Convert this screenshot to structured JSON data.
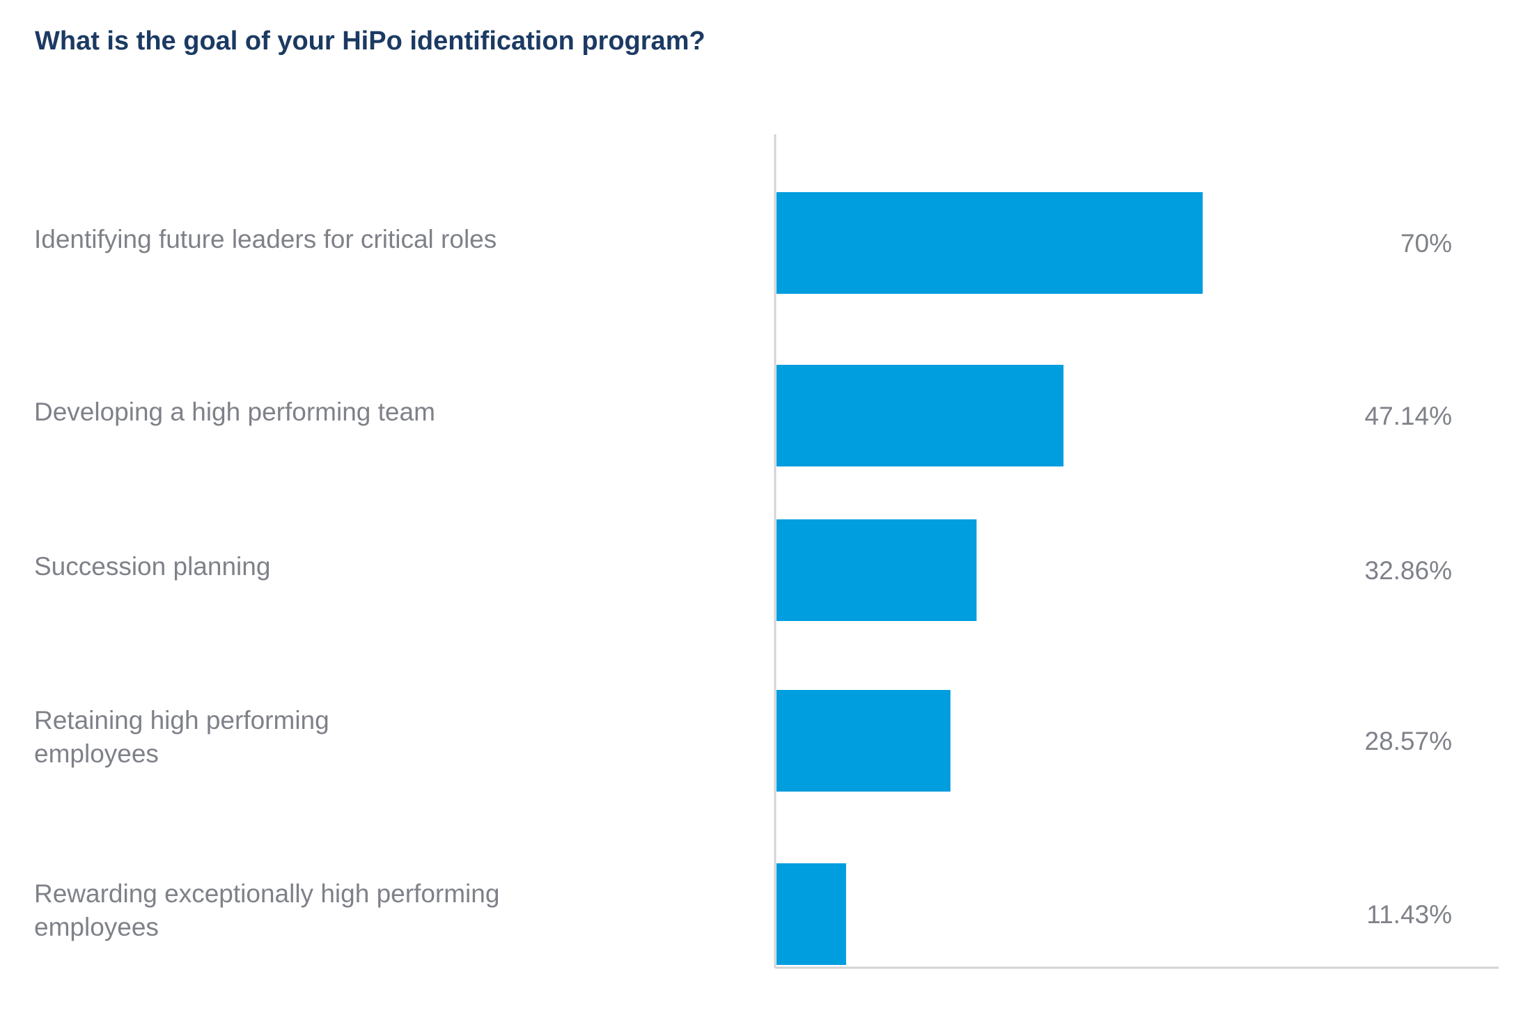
{
  "chart_data": {
    "type": "bar",
    "orientation": "horizontal",
    "title": "What is the goal of your HiPo identification program?",
    "categories": [
      "Identifying future leaders for critical roles",
      "Developing a high performing team",
      "Succession planning",
      "Retaining high performing employees",
      "Rewarding exceptionally high performing employees"
    ],
    "values": [
      70,
      47.14,
      32.86,
      28.57,
      11.43
    ],
    "value_labels": [
      "70%",
      "47.14%",
      "32.86%",
      "28.57%",
      "11.43%"
    ],
    "unit": "%",
    "xlim": [
      0,
      100
    ],
    "grid": false,
    "legend": "none",
    "colors": {
      "bar": "#009ddf",
      "title": "#1b3a63",
      "label": "#7f8189",
      "axis": "#d3d3d6"
    }
  }
}
